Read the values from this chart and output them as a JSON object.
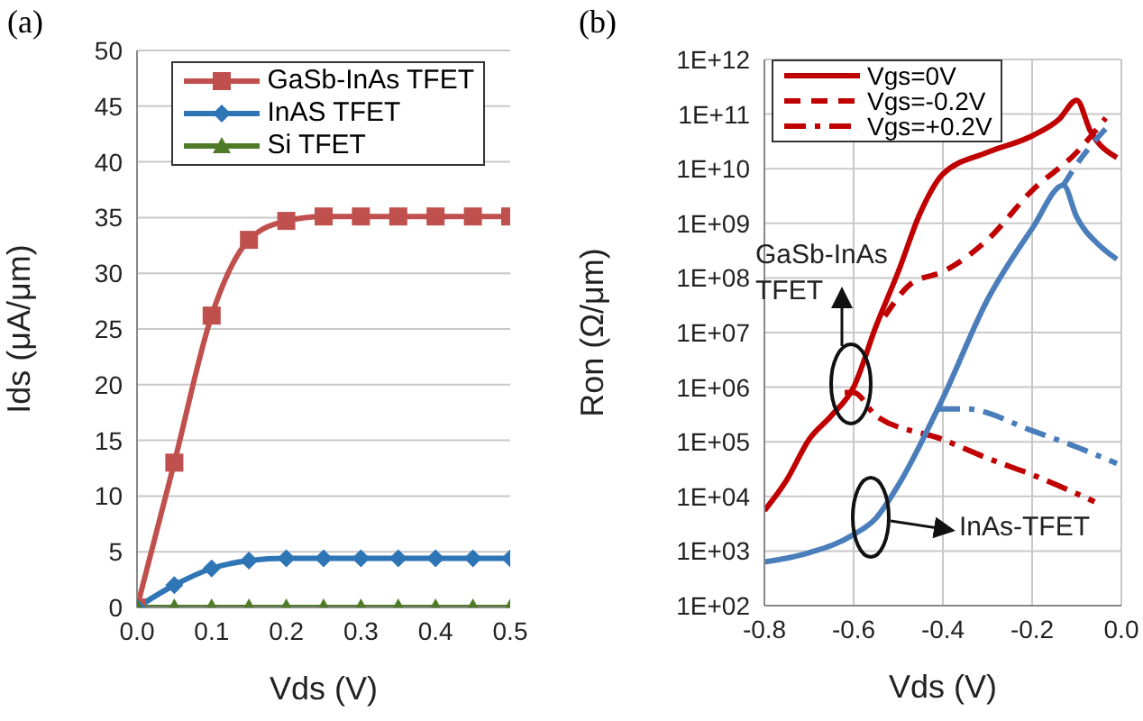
{
  "chart_data": [
    {
      "type": "line",
      "title": "(a)",
      "xlabel": "Vds (V)",
      "ylabel": "Ids (μA/μm)",
      "x": [
        0,
        0.05,
        0.1,
        0.15,
        0.2,
        0.25,
        0.3,
        0.35,
        0.4,
        0.45,
        0.5
      ],
      "xlim": [
        0,
        0.5
      ],
      "xticks": [
        {
          "value": 0,
          "label": "0.0"
        },
        0.1,
        0.2,
        0.3,
        0.4,
        0.5
      ],
      "ylim": [
        0,
        50
      ],
      "yticks": [
        0,
        5,
        10,
        15,
        20,
        25,
        30,
        35,
        40,
        45,
        50
      ],
      "grid": "y",
      "legend": "top right",
      "series": [
        {
          "name": "GaSb-InAs TFET",
          "color": "#c0504d",
          "marker": "square",
          "values": [
            0,
            13,
            26.2,
            33,
            34.7,
            35.1,
            35.1,
            35.1,
            35.1,
            35.1,
            35.1
          ]
        },
        {
          "name": "InAS TFET",
          "color": "#2e75b6",
          "marker": "diamond",
          "values": [
            0,
            2,
            3.5,
            4.2,
            4.4,
            4.4,
            4.4,
            4.4,
            4.4,
            4.4,
            4.4
          ]
        },
        {
          "name": "Si TFET",
          "color": "#4f7a28",
          "marker": "triangle",
          "values": [
            0,
            0,
            0,
            0,
            0,
            0,
            0,
            0,
            0,
            0,
            0
          ]
        }
      ]
    },
    {
      "type": "line",
      "title": "(b)",
      "xlabel": "Vds (V)",
      "ylabel": "Ron (Ω/μm)",
      "log": "y",
      "xlim": [
        -0.8,
        0
      ],
      "xticks": [
        -0.8,
        -0.6,
        -0.4,
        -0.2,
        {
          "value": 0,
          "label": "0.0"
        }
      ],
      "ylim": [
        100,
        1000000000000
      ],
      "yticks": [
        {
          "value": 100,
          "label": "1E+02"
        },
        {
          "value": 1000,
          "label": "1E+03"
        },
        {
          "value": 10000,
          "label": "1E+04"
        },
        {
          "value": 100000,
          "label": "1E+05"
        },
        {
          "value": 1000000,
          "label": "1E+06"
        },
        {
          "value": 10000000,
          "label": "1E+07"
        },
        {
          "value": 100000000,
          "label": "1E+08"
        },
        {
          "value": 1000000000,
          "label": "1E+09"
        },
        {
          "value": 10000000000,
          "label": "1E+10"
        },
        {
          "value": 100000000000,
          "label": "1E+11"
        },
        {
          "value": 1000000000000,
          "label": "1E+12"
        }
      ],
      "grid": true,
      "legend": "top left",
      "annotations": [
        "GaSb-InAs TFET",
        "InAs-TFET"
      ],
      "series": [
        {
          "name": "Vgs=0V",
          "color": "#c00000",
          "line_style": "solid",
          "x": [
            -0.8,
            -0.75,
            -0.7,
            -0.65,
            -0.6,
            -0.55,
            -0.5,
            -0.45,
            -0.4,
            -0.3,
            -0.2,
            -0.14,
            -0.1,
            -0.07,
            -0.01
          ],
          "values": [
            5500,
            20000,
            110000,
            300000,
            1000000,
            13000000,
            130000000,
            1600000000,
            8000000000,
            20000000000,
            40000000000,
            80000000000,
            180000000000,
            50000000000,
            16000000000
          ]
        },
        {
          "name": "Vgs=-0.2V",
          "color": "#c00000",
          "line_style": "dashed",
          "x": [
            -0.53,
            -0.47,
            -0.4,
            -0.3,
            -0.2,
            -0.1,
            -0.035
          ],
          "values": [
            20000000,
            80000000,
            130000000,
            500000000,
            4000000000,
            20000000000,
            85000000000
          ]
        },
        {
          "name": "Vgs=+0.2V",
          "color": "#c00000",
          "line_style": "dashdot",
          "x": [
            -0.62,
            -0.6,
            -0.55,
            -0.4,
            -0.3,
            -0.2,
            -0.06
          ],
          "values": [
            800000,
            800000,
            300000,
            110000,
            50000,
            25000,
            8000
          ]
        },
        {
          "color": "#4a7ebb",
          "line_style": "solid",
          "x": [
            -0.8,
            -0.7,
            -0.6,
            -0.55,
            -0.5,
            -0.4,
            -0.3,
            -0.2,
            -0.13,
            -0.1,
            -0.05,
            -0.01
          ],
          "values": [
            630,
            930,
            2000,
            4000,
            16000,
            630000,
            40000000,
            800000000,
            5000000000,
            1300000000,
            400000000,
            220000000
          ]
        },
        {
          "color": "#4a7ebb",
          "line_style": "dashed",
          "x": [
            -0.13,
            -0.1,
            -0.03
          ],
          "values": [
            5000000000,
            12000000000,
            60000000000
          ]
        },
        {
          "color": "#4a7ebb",
          "line_style": "dashdot",
          "x": [
            -0.41,
            -0.35,
            -0.2,
            -0.1,
            -0.01
          ],
          "values": [
            400000,
            400000,
            160000,
            80000,
            40000
          ]
        }
      ]
    }
  ]
}
